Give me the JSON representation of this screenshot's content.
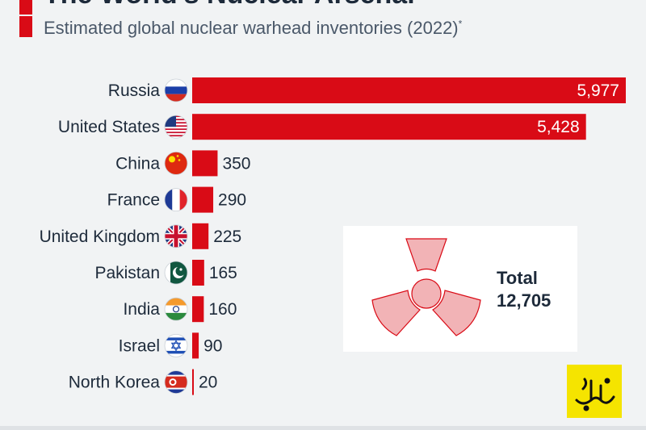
{
  "header": {
    "title": "The World's Nuclear Arsenal",
    "subtitle": "Estimated global nuclear warhead inventories (2022)",
    "subtitle_mark": "*"
  },
  "total": {
    "label": "Total",
    "value": "12,705"
  },
  "colors": {
    "bar": "#d90b16",
    "accent": "#d90b16",
    "logo_bg": "#f5e400",
    "radiation": "#f2a7ab"
  },
  "chart_data": {
    "type": "bar",
    "orientation": "horizontal",
    "title": "The World's Nuclear Arsenal",
    "subtitle": "Estimated global nuclear warhead inventories (2022)*",
    "categories": [
      "Russia",
      "United States",
      "China",
      "France",
      "United Kingdom",
      "Pakistan",
      "India",
      "Israel",
      "North Korea"
    ],
    "values": [
      5977,
      5428,
      350,
      290,
      225,
      165,
      160,
      90,
      20
    ],
    "value_labels": [
      "5,977",
      "5,428",
      "350",
      "290",
      "225",
      "165",
      "160",
      "90",
      "20"
    ],
    "flag_icons": [
      "russia-flag-icon",
      "usa-flag-icon",
      "china-flag-icon",
      "france-flag-icon",
      "uk-flag-icon",
      "pakistan-flag-icon",
      "india-flag-icon",
      "israel-flag-icon",
      "north-korea-flag-icon"
    ],
    "xlim": [
      0,
      5977
    ],
    "grid": false,
    "legend": "none"
  }
}
